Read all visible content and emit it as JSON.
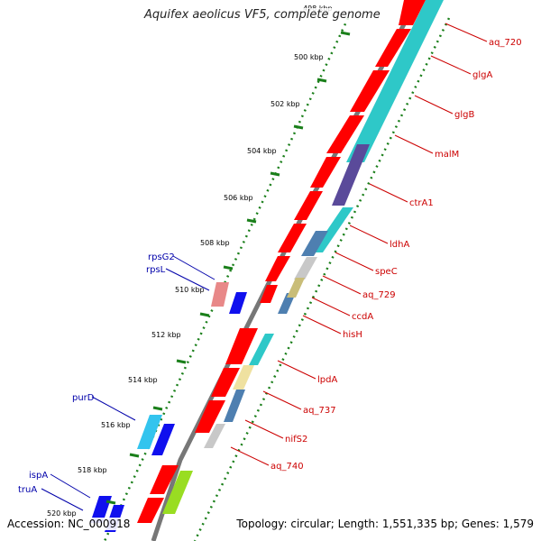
{
  "title": "Aquifex aeolicus VF5, complete genome",
  "accession": "Accession: NC_000918",
  "topology": "Topology: circular; Length: 1,551,335 bp; Genes: 1,579",
  "colors": {
    "backbone": "#777777",
    "tick_dots": "#1a7f1a",
    "right_labels": "#cc0000",
    "left_labels": "#0000aa",
    "outer_genes": "#ff0000",
    "teal_track": "#2ec8c8",
    "purple_block": "#5a4a9a",
    "slate_block": "#4e7fb0",
    "silver_block": "#c8c8c8",
    "khaki_block": "#c9bd78",
    "cream_block": "#efe1a0",
    "blue_genes": "#1010ee",
    "pink_block": "#e88888",
    "sky_block": "#33c4ee",
    "lime_block": "#99dd22"
  },
  "kbp_labels": [
    "498 kbp",
    "500 kbp",
    "502 kbp",
    "504 kbp",
    "506 kbp",
    "508 kbp",
    "510 kbp",
    "512 kbp",
    "514 kbp",
    "516 kbp",
    "518 kbp",
    "520 kbp"
  ],
  "right_gene_labels": [
    "aq_720",
    "glgA",
    "glgB",
    "malM",
    "ctrA1",
    "ldhA",
    "speC",
    "aq_729",
    "ccdA",
    "hisH",
    "lpdA",
    "aq_737",
    "nifS2",
    "aq_740"
  ],
  "left_gene_labels": [
    "rpsG2",
    "rpsL",
    "purD",
    "ispA",
    "truA"
  ]
}
